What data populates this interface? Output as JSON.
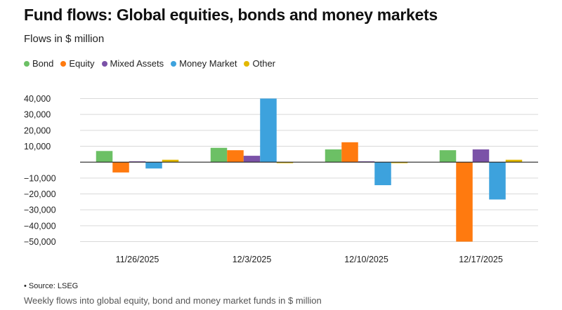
{
  "header": {
    "title": "Fund flows: Global equities, bonds and money markets",
    "subtitle": "Flows in $ million"
  },
  "footer": {
    "source": "• Source: LSEG",
    "note": "Weekly flows into global equity, bond and money market funds in $ million"
  },
  "chart_data": {
    "type": "bar",
    "title": "Fund flows: Global equities, bonds and money markets",
    "subtitle": "Flows in $ million",
    "categories": [
      "11/26/2025",
      "12/3/2025",
      "12/10/2025",
      "12/17/2025"
    ],
    "series": [
      {
        "name": "Bond",
        "color": "#6cc065",
        "values": [
          7000,
          9000,
          8000,
          7500
        ]
      },
      {
        "name": "Equity",
        "color": "#ff7a0f",
        "values": [
          -6500,
          7500,
          12500,
          -50000
        ]
      },
      {
        "name": "Mixed Assets",
        "color": "#7b52a8",
        "values": [
          500,
          4000,
          500,
          8000
        ]
      },
      {
        "name": "Money Market",
        "color": "#3da2dd",
        "values": [
          -4000,
          40000,
          -14500,
          -23500
        ]
      },
      {
        "name": "Other",
        "color": "#e3b800",
        "values": [
          1500,
          -500,
          -500,
          1500
        ]
      }
    ],
    "yticks": [
      40000,
      30000,
      20000,
      10000,
      -10000,
      -20000,
      -30000,
      -40000,
      -50000
    ],
    "ytick_labels": [
      "40,000",
      "30,000",
      "20,000",
      "10,000",
      "−10,000",
      "−20,000",
      "−30,000",
      "−40,000",
      "−50,000"
    ],
    "ylim": [
      -50000,
      40000
    ],
    "grid": true,
    "legend_position": "top-left"
  }
}
